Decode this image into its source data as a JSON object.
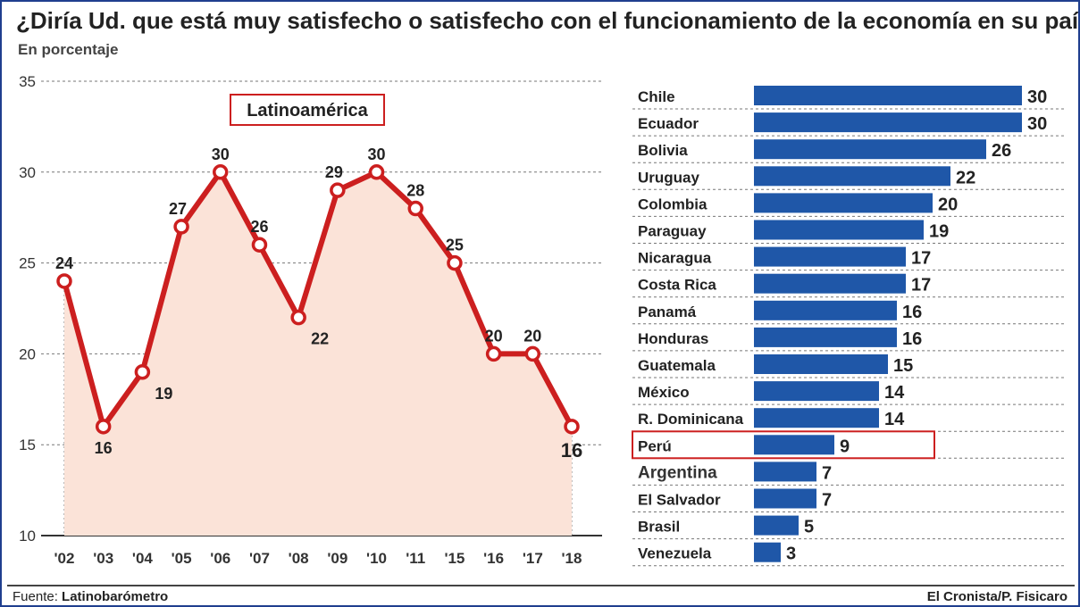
{
  "title": "¿Diría Ud. que está muy satisfecho o satisfecho con el funcionamiento de la economía en su país?",
  "subtitle": "En porcentaje",
  "footer": {
    "source_label": "Fuente:",
    "source_name": "Latinobarómetro",
    "credit": "El Cronista/P. Fisicaro"
  },
  "colors": {
    "line": "#cc1f1f",
    "area": "#fbe3d8",
    "bar": "#1f57a8",
    "highlight_border": "#cc1f1f",
    "grid": "#777777"
  },
  "chart_data": [
    {
      "type": "line",
      "title": "Latinoamérica",
      "x": [
        "'02",
        "'03",
        "'04",
        "'05",
        "'06",
        "'07",
        "'08",
        "'09",
        "'10",
        "'11",
        "'15",
        "'16",
        "'17",
        "'18"
      ],
      "values": [
        24,
        16,
        19,
        27,
        30,
        26,
        22,
        29,
        30,
        28,
        25,
        20,
        20,
        16
      ],
      "yticks": [
        10,
        15,
        20,
        25,
        30,
        35
      ],
      "ylim": [
        10,
        35
      ],
      "grid": true,
      "area_fill": true
    },
    {
      "type": "bar",
      "orientation": "horizontal",
      "categories": [
        "Chile",
        "Ecuador",
        "Bolivia",
        "Uruguay",
        "Colombia",
        "Paraguay",
        "Nicaragua",
        "Costa Rica",
        "Panamá",
        "Honduras",
        "Guatemala",
        "México",
        "R. Dominicana",
        "Perú",
        "Argentina",
        "El Salvador",
        "Brasil",
        "Venezuela"
      ],
      "values": [
        30,
        30,
        26,
        22,
        20,
        19,
        17,
        17,
        16,
        16,
        15,
        14,
        14,
        9,
        7,
        7,
        5,
        3
      ],
      "highlight": [
        "Perú"
      ],
      "emphasis": [
        "Argentina"
      ],
      "xlim": [
        0,
        30
      ],
      "grid": true
    }
  ]
}
